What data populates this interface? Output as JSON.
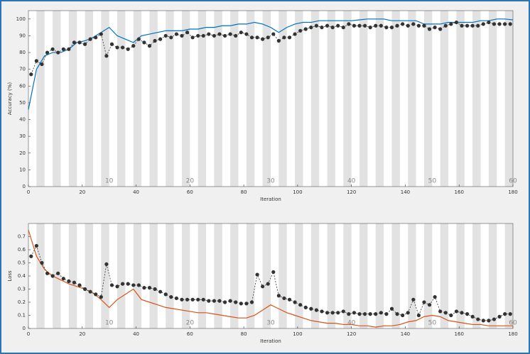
{
  "chart_data": [
    {
      "type": "line",
      "xlabel": "Iteration",
      "ylabel": "Accuracy (%)",
      "xlim": [
        0,
        180
      ],
      "xticks": [
        0,
        20,
        40,
        60,
        80,
        100,
        120,
        140,
        160,
        180
      ],
      "ylim": [
        0,
        105
      ],
      "yticks": [
        0,
        10,
        20,
        30,
        40,
        50,
        60,
        70,
        80,
        90,
        100
      ],
      "epoch_ticks": [
        {
          "value": 30,
          "label": "10"
        },
        {
          "value": 60,
          "label": "20"
        },
        {
          "value": 90,
          "label": "30"
        },
        {
          "value": 120,
          "label": "40"
        },
        {
          "value": 150,
          "label": "50"
        },
        {
          "value": 180,
          "label": "60"
        }
      ],
      "series": [
        {
          "color": "#0072bd",
          "linestyle": "solid",
          "x": [
            0,
            3,
            6,
            9,
            12,
            15,
            18,
            21,
            24,
            27,
            30,
            33,
            36,
            39,
            42,
            45,
            48,
            51,
            54,
            57,
            60,
            63,
            66,
            69,
            72,
            75,
            78,
            81,
            84,
            87,
            90,
            93,
            96,
            99,
            102,
            105,
            108,
            111,
            114,
            117,
            120,
            123,
            126,
            129,
            132,
            135,
            138,
            141,
            144,
            147,
            150,
            153,
            156,
            159,
            162,
            165,
            168,
            171,
            174,
            177,
            180
          ],
          "values": [
            46,
            70,
            78,
            80,
            80,
            82,
            86,
            87,
            89,
            92,
            95,
            90,
            88,
            86,
            90,
            91,
            92,
            93,
            93,
            93,
            94,
            94,
            95,
            95,
            96,
            96,
            97,
            97,
            98,
            97,
            95,
            92,
            95,
            97,
            98,
            98,
            99,
            99,
            99,
            99,
            99,
            99.5,
            100,
            100,
            100,
            99,
            99,
            99,
            99,
            97,
            97,
            97,
            98,
            98,
            98,
            98,
            99,
            99,
            100,
            100,
            99.5
          ]
        },
        {
          "color": "#333333",
          "linestyle": "dashed",
          "marker": "o",
          "x": [
            1,
            3,
            5,
            7,
            9,
            11,
            13,
            15,
            17,
            19,
            21,
            23,
            25,
            27,
            29,
            31,
            33,
            35,
            37,
            39,
            41,
            43,
            45,
            47,
            49,
            51,
            53,
            55,
            57,
            59,
            61,
            63,
            65,
            67,
            69,
            71,
            73,
            75,
            77,
            79,
            81,
            83,
            85,
            87,
            89,
            91,
            93,
            95,
            97,
            99,
            101,
            103,
            105,
            107,
            109,
            111,
            113,
            115,
            117,
            119,
            121,
            123,
            125,
            127,
            129,
            131,
            133,
            135,
            137,
            139,
            141,
            143,
            145,
            147,
            149,
            151,
            153,
            155,
            157,
            159,
            161,
            163,
            165,
            167,
            169,
            171,
            173,
            175,
            177,
            179
          ],
          "values": [
            67,
            75,
            73,
            80,
            82,
            80,
            82,
            82,
            86,
            86,
            85,
            88,
            89,
            91,
            78,
            85,
            83,
            83,
            82,
            84,
            88,
            86,
            84,
            87,
            88,
            90,
            89,
            91,
            90,
            92,
            89,
            90,
            90,
            91,
            90,
            91,
            90,
            91,
            90,
            92,
            91,
            89,
            89,
            88,
            89,
            91,
            87,
            89,
            89,
            91,
            93,
            94,
            95,
            96,
            95,
            96,
            95,
            96,
            95,
            97,
            96,
            96,
            96,
            95,
            96,
            96,
            95,
            95,
            96,
            97,
            96,
            97,
            96,
            96,
            94,
            95,
            94,
            96,
            97,
            98,
            96,
            96,
            96,
            96,
            97,
            98,
            97,
            97,
            97,
            97
          ]
        }
      ]
    },
    {
      "type": "line",
      "xlabel": "Iteration",
      "ylabel": "Loss",
      "xlim": [
        0,
        180
      ],
      "xticks": [
        0,
        20,
        40,
        60,
        80,
        100,
        120,
        140,
        160,
        180
      ],
      "ylim": [
        0,
        0.8
      ],
      "yticks": [
        0,
        0.1,
        0.2,
        0.3,
        0.4,
        0.5,
        0.6,
        0.7
      ],
      "epoch_ticks": [
        {
          "value": 30,
          "label": "10"
        },
        {
          "value": 60,
          "label": "20"
        },
        {
          "value": 90,
          "label": "30"
        },
        {
          "value": 120,
          "label": "40"
        },
        {
          "value": 150,
          "label": "50"
        },
        {
          "value": 180,
          "label": "60"
        }
      ],
      "series": [
        {
          "color": "#d95319",
          "linestyle": "solid",
          "x": [
            0,
            3,
            6,
            9,
            12,
            15,
            18,
            21,
            24,
            27,
            30,
            33,
            36,
            39,
            42,
            45,
            48,
            51,
            54,
            57,
            60,
            63,
            66,
            69,
            72,
            75,
            78,
            81,
            84,
            87,
            90,
            93,
            96,
            99,
            102,
            105,
            108,
            111,
            114,
            117,
            120,
            123,
            126,
            129,
            132,
            135,
            138,
            141,
            144,
            147,
            150,
            153,
            156,
            159,
            162,
            165,
            168,
            171,
            174,
            177,
            180
          ],
          "values": [
            0.75,
            0.55,
            0.45,
            0.4,
            0.37,
            0.34,
            0.32,
            0.3,
            0.27,
            0.22,
            0.16,
            0.22,
            0.26,
            0.3,
            0.22,
            0.2,
            0.18,
            0.16,
            0.15,
            0.14,
            0.13,
            0.12,
            0.12,
            0.11,
            0.1,
            0.09,
            0.08,
            0.08,
            0.1,
            0.14,
            0.18,
            0.15,
            0.12,
            0.1,
            0.08,
            0.06,
            0.05,
            0.04,
            0.04,
            0.03,
            0.03,
            0.02,
            0.02,
            0.01,
            0.02,
            0.02,
            0.03,
            0.05,
            0.06,
            0.09,
            0.1,
            0.09,
            0.06,
            0.05,
            0.04,
            0.03,
            0.03,
            0.02,
            0.02,
            0.02,
            0.02
          ]
        },
        {
          "color": "#333333",
          "linestyle": "dashed",
          "marker": "o",
          "x": [
            1,
            3,
            5,
            7,
            9,
            11,
            13,
            15,
            17,
            19,
            21,
            23,
            25,
            27,
            29,
            31,
            33,
            35,
            37,
            39,
            41,
            43,
            45,
            47,
            49,
            51,
            53,
            55,
            57,
            59,
            61,
            63,
            65,
            67,
            69,
            71,
            73,
            75,
            77,
            79,
            81,
            83,
            85,
            87,
            89,
            91,
            93,
            95,
            97,
            99,
            101,
            103,
            105,
            107,
            109,
            111,
            113,
            115,
            117,
            119,
            121,
            123,
            125,
            127,
            129,
            131,
            133,
            135,
            137,
            139,
            141,
            143,
            145,
            147,
            149,
            151,
            153,
            155,
            157,
            159,
            161,
            163,
            165,
            167,
            169,
            171,
            173,
            175,
            177,
            179
          ],
          "values": [
            0.55,
            0.63,
            0.5,
            0.42,
            0.4,
            0.42,
            0.38,
            0.36,
            0.35,
            0.33,
            0.3,
            0.28,
            0.26,
            0.24,
            0.49,
            0.33,
            0.32,
            0.34,
            0.34,
            0.33,
            0.33,
            0.31,
            0.31,
            0.3,
            0.28,
            0.26,
            0.24,
            0.23,
            0.22,
            0.22,
            0.22,
            0.22,
            0.22,
            0.21,
            0.21,
            0.21,
            0.2,
            0.21,
            0.2,
            0.19,
            0.19,
            0.2,
            0.41,
            0.32,
            0.34,
            0.43,
            0.25,
            0.23,
            0.22,
            0.2,
            0.18,
            0.16,
            0.15,
            0.14,
            0.13,
            0.12,
            0.12,
            0.12,
            0.13,
            0.11,
            0.12,
            0.11,
            0.11,
            0.11,
            0.11,
            0.12,
            0.11,
            0.15,
            0.11,
            0.1,
            0.12,
            0.22,
            0.1,
            0.2,
            0.18,
            0.24,
            0.13,
            0.12,
            0.1,
            0.13,
            0.12,
            0.11,
            0.09,
            0.07,
            0.06,
            0.06,
            0.07,
            0.09,
            0.11,
            0.11
          ]
        }
      ]
    }
  ]
}
